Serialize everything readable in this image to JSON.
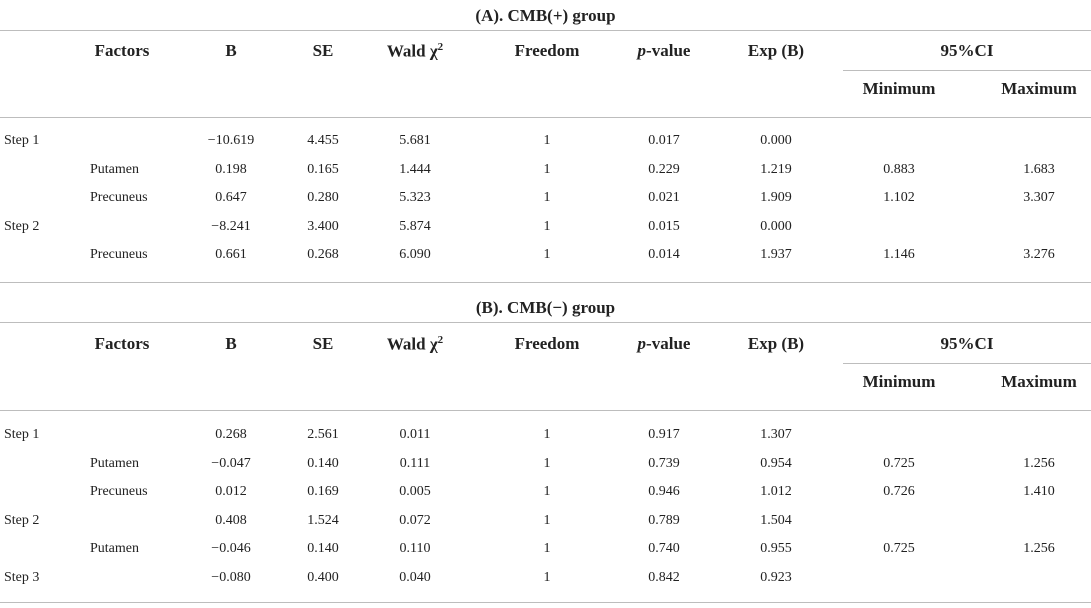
{
  "sections": [
    {
      "title": "(A). CMB(+) group",
      "headers": {
        "factors": "Factors",
        "b": "B",
        "se": "SE",
        "wald": "Wald χ",
        "wald_sup": "2",
        "freedom": "Freedom",
        "p_italic": "p",
        "p_rest": "-value",
        "exp": "Exp (B)",
        "ci": "95%CI",
        "min": "Minimum",
        "max": "Maximum"
      },
      "rows": [
        {
          "step": "Step 1",
          "factor": "",
          "b": "−10.619",
          "se": "4.455",
          "wald": "5.681",
          "freedom": "1",
          "p": "0.017",
          "exp": "0.000",
          "min": "",
          "max": ""
        },
        {
          "step": "",
          "factor": "Putamen",
          "b": "0.198",
          "se": "0.165",
          "wald": "1.444",
          "freedom": "1",
          "p": "0.229",
          "exp": "1.219",
          "min": "0.883",
          "max": "1.683"
        },
        {
          "step": "",
          "factor": "Precuneus",
          "b": "0.647",
          "se": "0.280",
          "wald": "5.323",
          "freedom": "1",
          "p": "0.021",
          "exp": "1.909",
          "min": "1.102",
          "max": "3.307"
        },
        {
          "step": "Step 2",
          "factor": "",
          "b": "−8.241",
          "se": "3.400",
          "wald": "5.874",
          "freedom": "1",
          "p": "0.015",
          "exp": "0.000",
          "min": "",
          "max": ""
        },
        {
          "step": "",
          "factor": "Precuneus",
          "b": "0.661",
          "se": "0.268",
          "wald": "6.090",
          "freedom": "1",
          "p": "0.014",
          "exp": "1.937",
          "min": "1.146",
          "max": "3.276"
        }
      ]
    },
    {
      "title": "(B). CMB(−) group",
      "headers": {
        "factors": "Factors",
        "b": "B",
        "se": "SE",
        "wald": "Wald χ",
        "wald_sup": "2",
        "freedom": "Freedom",
        "p_italic": "p",
        "p_rest": "-value",
        "exp": "Exp (B)",
        "ci": "95%CI",
        "min": "Minimum",
        "max": "Maximum"
      },
      "rows": [
        {
          "step": "Step 1",
          "factor": "",
          "b": "0.268",
          "se": "2.561",
          "wald": "0.011",
          "freedom": "1",
          "p": "0.917",
          "exp": "1.307",
          "min": "",
          "max": ""
        },
        {
          "step": "",
          "factor": "Putamen",
          "b": "−0.047",
          "se": "0.140",
          "wald": "0.111",
          "freedom": "1",
          "p": "0.739",
          "exp": "0.954",
          "min": "0.725",
          "max": "1.256"
        },
        {
          "step": "",
          "factor": "Precuneus",
          "b": "0.012",
          "se": "0.169",
          "wald": "0.005",
          "freedom": "1",
          "p": "0.946",
          "exp": "1.012",
          "min": "0.726",
          "max": "1.410"
        },
        {
          "step": "Step 2",
          "factor": "",
          "b": "0.408",
          "se": "1.524",
          "wald": "0.072",
          "freedom": "1",
          "p": "0.789",
          "exp": "1.504",
          "min": "",
          "max": ""
        },
        {
          "step": "",
          "factor": "Putamen",
          "b": "−0.046",
          "se": "0.140",
          "wald": "0.110",
          "freedom": "1",
          "p": "0.740",
          "exp": "0.955",
          "min": "0.725",
          "max": "1.256"
        },
        {
          "step": "Step 3",
          "factor": "",
          "b": "−0.080",
          "se": "0.400",
          "wald": "0.040",
          "freedom": "1",
          "p": "0.842",
          "exp": "0.923",
          "min": "",
          "max": ""
        }
      ]
    }
  ]
}
